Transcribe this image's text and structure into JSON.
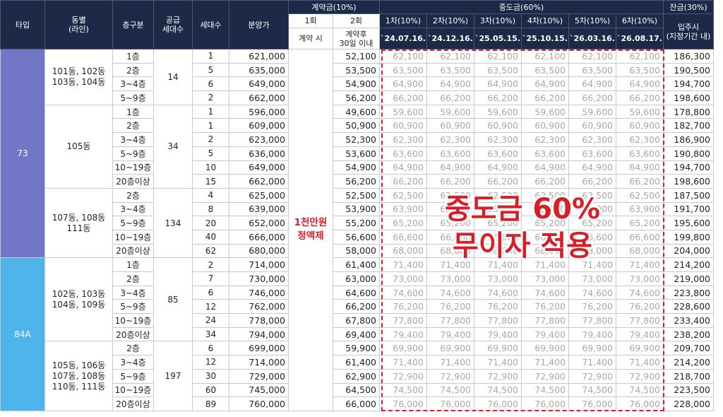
{
  "headers": {
    "type": "타입",
    "building": "동별\n(라인)",
    "floor": "층구분",
    "supply": "공급\n세대수",
    "units": "세대수",
    "price": "분양가",
    "contract_group": "계약금(10%)",
    "contract_1": "1회",
    "contract_1_sub": "계약 시",
    "contract_2": "2회",
    "contract_2_sub": "계약후\n30일 이내",
    "interim_group": "중도금(60%)",
    "interim": [
      {
        "label": "1차(10%)",
        "date": "`24.07.16."
      },
      {
        "label": "2차(10%)",
        "date": "`24.12.16."
      },
      {
        "label": "3차(10%)",
        "date": "`25.05.15."
      },
      {
        "label": "4차(10%)",
        "date": "`25.10.15."
      },
      {
        "label": "5차(10%)",
        "date": "`26.03.16."
      },
      {
        "label": "6차(10%)",
        "date": "`26.08.17."
      }
    ],
    "balance_group": "잔금(30%)",
    "balance_sub": "입주시\n(지정기간 내)"
  },
  "contract_1_value": "1천만원\n정액제",
  "overlay": {
    "line1": "중도금 60%",
    "line2": "무이자 적용"
  },
  "types": [
    {
      "name": "73",
      "color": "#7376c6"
    },
    {
      "name": "84A",
      "color": "#4fb4ea"
    }
  ],
  "groups": [
    {
      "type": 0,
      "building": "101동, 102동\n103동, 104동",
      "supply": "14",
      "rows": [
        {
          "floor": "1층",
          "units": "1",
          "price": "621,000",
          "c2": "52,100",
          "interim": "62,100",
          "balance": "186,300"
        },
        {
          "floor": "2층",
          "units": "5",
          "price": "635,000",
          "c2": "53,500",
          "interim": "63,500",
          "balance": "190,500"
        },
        {
          "floor": "3~4층",
          "units": "6",
          "price": "649,000",
          "c2": "54,900",
          "interim": "64,900",
          "balance": "194,700"
        },
        {
          "floor": "5~9층",
          "units": "2",
          "price": "662,000",
          "c2": "56,200",
          "interim": "66,200",
          "balance": "198,600"
        }
      ]
    },
    {
      "type": 0,
      "building": "105동",
      "supply": "34",
      "rows": [
        {
          "floor": "1층",
          "units": "1",
          "price": "596,000",
          "c2": "49,600",
          "interim": "59,600",
          "balance": "178,800"
        },
        {
          "floor": "2층",
          "units": "1",
          "price": "609,000",
          "c2": "50,900",
          "interim": "60,900",
          "balance": "182,700"
        },
        {
          "floor": "3~4층",
          "units": "2",
          "price": "623,000",
          "c2": "52,300",
          "interim": "62,300",
          "balance": "186,900"
        },
        {
          "floor": "5~9층",
          "units": "5",
          "price": "636,000",
          "c2": "53,600",
          "interim": "63,600",
          "balance": "190,800"
        },
        {
          "floor": "10~19층",
          "units": "10",
          "price": "649,000",
          "c2": "54,900",
          "interim": "64,900",
          "balance": "194,700"
        },
        {
          "floor": "20층이상",
          "units": "15",
          "price": "662,000",
          "c2": "56,200",
          "interim": "66,200",
          "balance": "198,600"
        }
      ]
    },
    {
      "type": 0,
      "building": "107동, 108동\n111동",
      "supply": "134",
      "rows": [
        {
          "floor": "2층",
          "units": "4",
          "price": "625,000",
          "c2": "52,500",
          "interim": "62,500",
          "balance": "187,500"
        },
        {
          "floor": "3~4층",
          "units": "8",
          "price": "639,000",
          "c2": "53,900",
          "interim": "63,900",
          "balance": "191,700"
        },
        {
          "floor": "5~9층",
          "units": "20",
          "price": "652,000",
          "c2": "55,200",
          "interim": "65,200",
          "balance": "195,600"
        },
        {
          "floor": "10~19층",
          "units": "40",
          "price": "666,000",
          "c2": "56,600",
          "interim": "66,600",
          "balance": "199,800"
        },
        {
          "floor": "20층이상",
          "units": "62",
          "price": "680,000",
          "c2": "58,000",
          "interim": "68,000",
          "balance": "204,000"
        }
      ]
    },
    {
      "type": 1,
      "building": "102동, 103동\n104동, 109동",
      "supply": "85",
      "rows": [
        {
          "floor": "1층",
          "units": "2",
          "price": "714,000",
          "c2": "61,400",
          "interim": "71,400",
          "balance": "214,200"
        },
        {
          "floor": "2층",
          "units": "7",
          "price": "730,000",
          "c2": "63,000",
          "interim": "73,000",
          "balance": "219,000"
        },
        {
          "floor": "3~4층",
          "units": "6",
          "price": "746,000",
          "c2": "64,600",
          "interim": "74,600",
          "balance": "223,800"
        },
        {
          "floor": "5~9층",
          "units": "12",
          "price": "762,000",
          "c2": "66,200",
          "interim": "76,200",
          "balance": "228,600"
        },
        {
          "floor": "10~19층",
          "units": "24",
          "price": "778,000",
          "c2": "67,800",
          "interim": "77,800",
          "balance": "233,400"
        },
        {
          "floor": "20층이상",
          "units": "34",
          "price": "794,000",
          "c2": "69,400",
          "interim": "79,400",
          "balance": "238,200"
        }
      ]
    },
    {
      "type": 1,
      "building": "105동, 106동\n107동, 108동\n110동, 111동",
      "supply": "197",
      "rows": [
        {
          "floor": "2층",
          "units": "6",
          "price": "699,000",
          "c2": "59,900",
          "interim": "69,900",
          "balance": "209,700"
        },
        {
          "floor": "3~4층",
          "units": "12",
          "price": "714,000",
          "c2": "61,400",
          "interim": "71,400",
          "balance": "214,200"
        },
        {
          "floor": "5~9층",
          "units": "30",
          "price": "729,000",
          "c2": "62,900",
          "interim": "72,900",
          "balance": "218,700"
        },
        {
          "floor": "10~19층",
          "units": "60",
          "price": "745,000",
          "c2": "64,500",
          "interim": "74,500",
          "balance": "223,500"
        },
        {
          "floor": "20층이상",
          "units": "89",
          "price": "760,000",
          "c2": "66,000",
          "interim": "76,000",
          "balance": "228,000"
        }
      ]
    }
  ]
}
